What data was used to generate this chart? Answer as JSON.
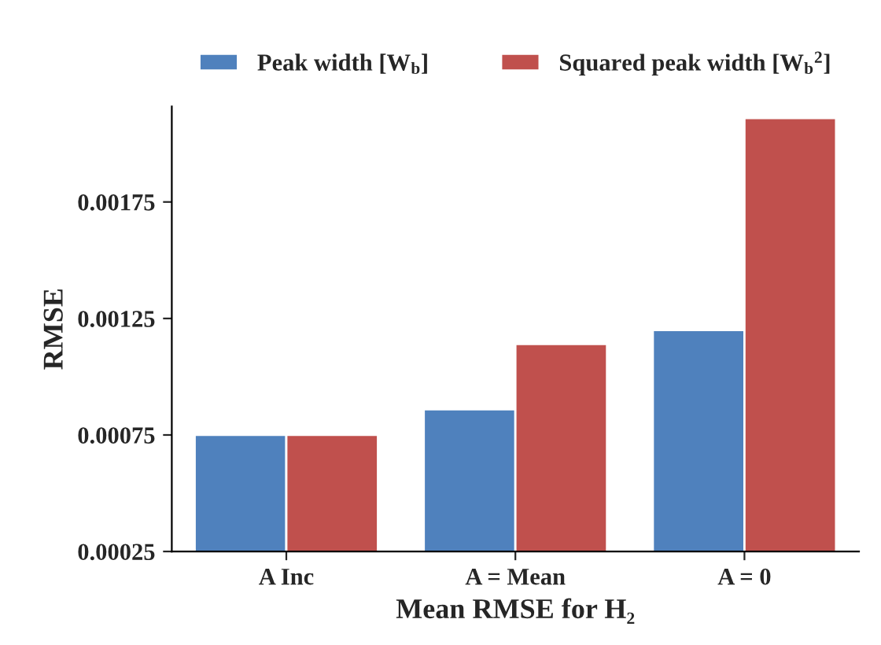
{
  "chart_data": {
    "type": "bar",
    "xlabel": "Mean RMSE for H₂",
    "ylabel": "RMSE",
    "categories": [
      "A Inc",
      "A = Mean",
      "A = 0"
    ],
    "series": [
      {
        "name": "Peak width [W$_{b}$]",
        "color": "#4f81bd",
        "values": [
          0.00075,
          0.00086,
          0.0012
        ]
      },
      {
        "name": "Squared peak width [W$_{b}$$^{2}$]",
        "color": "#c0504d",
        "values": [
          0.00075,
          0.00114,
          0.00211
        ]
      }
    ],
    "ylim": [
      0.00025,
      0.00216
    ],
    "yticks": [
      0.00025,
      0.00075,
      0.00125,
      0.00175
    ],
    "grid": false,
    "legend": "top"
  }
}
